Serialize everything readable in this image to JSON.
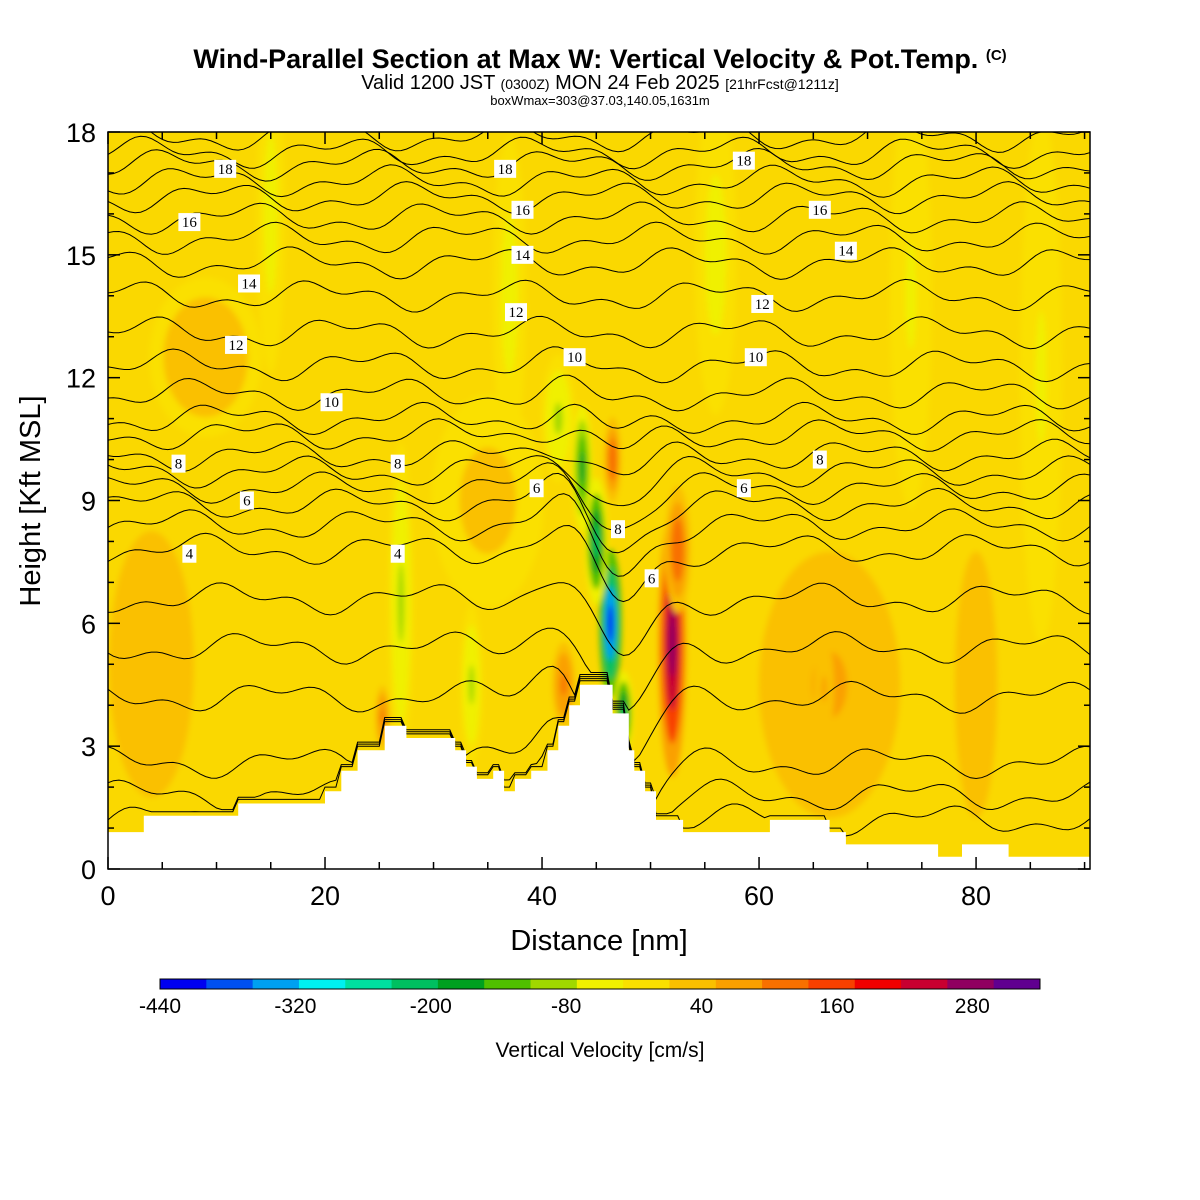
{
  "header": {
    "title_main": "Wind-Parallel Section at Max W: Vertical Velocity & Pot.Temp.",
    "title_mark": "(C)",
    "valid_prefix": "Valid 1200 JST",
    "valid_z": "(0300Z)",
    "valid_date": "MON 24 Feb 2025",
    "valid_fcst": "[21hrFcst@1211z]",
    "box_info": "boxWmax=303@37.03,140.05,1631m"
  },
  "chart_data": {
    "type": "heatmap",
    "xlabel": "Distance [nm]",
    "ylabel": "Height [Kft MSL]",
    "xlim": [
      0,
      90.5
    ],
    "ylim": [
      0,
      18
    ],
    "x_ticks": [
      0,
      20,
      40,
      60,
      80
    ],
    "y_ticks": [
      0,
      3,
      6,
      9,
      12,
      15,
      18
    ],
    "colorbar": {
      "label": "Vertical Velocity [cm/s]",
      "ticks": [
        "-440",
        "-320",
        "-200",
        "-80",
        "40",
        "160",
        "280"
      ],
      "range": [
        -440,
        340
      ],
      "colors": [
        "#0000f0",
        "#0050f0",
        "#00a0f0",
        "#00f0f0",
        "#00e0a0",
        "#00c060",
        "#00a020",
        "#50c000",
        "#a0d800",
        "#f0f000",
        "#fae000",
        "#fac000",
        "#faa000",
        "#f87000",
        "#f84000",
        "#f00000",
        "#c80030",
        "#900060",
        "#600090"
      ]
    },
    "terrain_profile": [
      [
        0,
        0.9
      ],
      [
        3.3,
        0.9
      ],
      [
        3.3,
        1.3
      ],
      [
        12,
        1.3
      ],
      [
        12,
        1.6
      ],
      [
        20,
        1.6
      ],
      [
        20,
        1.9
      ],
      [
        21.5,
        1.9
      ],
      [
        21.5,
        2.4
      ],
      [
        23,
        2.4
      ],
      [
        23,
        2.9
      ],
      [
        25.5,
        2.9
      ],
      [
        25.5,
        3.5
      ],
      [
        27.5,
        3.5
      ],
      [
        27.5,
        3.2
      ],
      [
        32,
        3.2
      ],
      [
        32,
        2.9
      ],
      [
        33,
        2.9
      ],
      [
        33,
        2.5
      ],
      [
        34,
        2.5
      ],
      [
        34,
        2.2
      ],
      [
        35.5,
        2.2
      ],
      [
        35.5,
        2.4
      ],
      [
        36.5,
        2.4
      ],
      [
        36.5,
        1.9
      ],
      [
        37.5,
        1.9
      ],
      [
        37.5,
        2.2
      ],
      [
        39,
        2.2
      ],
      [
        39,
        2.4
      ],
      [
        40.5,
        2.4
      ],
      [
        40.5,
        2.9
      ],
      [
        41.5,
        2.9
      ],
      [
        41.5,
        3.5
      ],
      [
        42.5,
        3.5
      ],
      [
        42.5,
        4.0
      ],
      [
        43.5,
        4.0
      ],
      [
        43.5,
        4.5
      ],
      [
        46.5,
        4.5
      ],
      [
        46.5,
        3.8
      ],
      [
        48,
        3.8
      ],
      [
        48,
        2.9
      ],
      [
        48.5,
        2.9
      ],
      [
        48.5,
        2.4
      ],
      [
        49.5,
        2.4
      ],
      [
        49.5,
        1.9
      ],
      [
        50.5,
        1.9
      ],
      [
        50.5,
        1.2
      ],
      [
        53,
        1.2
      ],
      [
        53,
        0.9
      ],
      [
        61,
        0.9
      ],
      [
        61,
        1.2
      ],
      [
        66.5,
        1.2
      ],
      [
        66.5,
        0.9
      ],
      [
        68,
        0.9
      ],
      [
        68,
        0.6
      ],
      [
        76.5,
        0.6
      ],
      [
        76.5,
        0.3
      ],
      [
        78.7,
        0.3
      ],
      [
        78.7,
        0.6
      ],
      [
        83,
        0.6
      ],
      [
        83,
        0.3
      ],
      [
        90.5,
        0.3
      ]
    ],
    "w_field": [
      {
        "x": 52.0,
        "y": 5.5,
        "sx": 1.0,
        "sy": 2.5,
        "w": 300
      },
      {
        "x": 52.5,
        "y": 7.8,
        "sx": 0.9,
        "sy": 1.2,
        "w": 140
      },
      {
        "x": 46.3,
        "y": 6.0,
        "sx": 0.8,
        "sy": 1.4,
        "w": -440
      },
      {
        "x": 45.0,
        "y": 8.0,
        "sx": 0.8,
        "sy": 1.2,
        "w": -220
      },
      {
        "x": 43.7,
        "y": 9.8,
        "sx": 0.7,
        "sy": 1.2,
        "w": -190
      },
      {
        "x": 47.5,
        "y": 3.8,
        "sx": 0.7,
        "sy": 0.8,
        "w": -220
      },
      {
        "x": 46.5,
        "y": 10.0,
        "sx": 0.6,
        "sy": 0.8,
        "w": 130
      },
      {
        "x": 27.0,
        "y": 6.5,
        "sx": 0.9,
        "sy": 3.0,
        "w": -90
      },
      {
        "x": 33.5,
        "y": 4.5,
        "sx": 0.8,
        "sy": 1.5,
        "w": -80
      },
      {
        "x": 41.5,
        "y": 11.0,
        "sx": 1.2,
        "sy": 1.2,
        "w": -90
      },
      {
        "x": 42.0,
        "y": 4.5,
        "sx": 0.8,
        "sy": 0.8,
        "w": 120
      },
      {
        "x": 25.3,
        "y": 3.7,
        "sx": 0.5,
        "sy": 0.6,
        "w": 110
      },
      {
        "x": 66.5,
        "y": 4.5,
        "sx": 5.0,
        "sy": 2.5,
        "w": 60
      },
      {
        "x": 66.0,
        "y": 4.4,
        "sx": 0.7,
        "sy": 1.0,
        "w": 60
      },
      {
        "x": 80.0,
        "y": 4.5,
        "sx": 1.5,
        "sy": 2.5,
        "w": 50
      },
      {
        "x": 4.0,
        "y": 5.0,
        "sx": 3.0,
        "sy": 2.5,
        "w": 40
      },
      {
        "x": 15.0,
        "y": 16.0,
        "sx": 1.0,
        "sy": 3.0,
        "w": -50
      },
      {
        "x": 37.0,
        "y": 14.0,
        "sx": 1.2,
        "sy": 3.0,
        "w": -50
      },
      {
        "x": 56.0,
        "y": 15.0,
        "sx": 1.5,
        "sy": 3.0,
        "w": -50
      },
      {
        "x": 74.0,
        "y": 14.0,
        "sx": 1.5,
        "sy": 4.0,
        "w": -40
      },
      {
        "x": 86.0,
        "y": 12.0,
        "sx": 1.5,
        "sy": 5.0,
        "w": -40
      },
      {
        "x": 9.0,
        "y": 12.5,
        "sx": 4.0,
        "sy": 1.5,
        "w": 30
      },
      {
        "x": 35.0,
        "y": 9.0,
        "sx": 4.0,
        "sy": 2.0,
        "w": 20
      }
    ],
    "theta_labels": [
      {
        "text": "18",
        "x": 10.8,
        "y": 17.1
      },
      {
        "text": "18",
        "x": 36.6,
        "y": 17.1
      },
      {
        "text": "18",
        "x": 58.6,
        "y": 17.3
      },
      {
        "text": "16",
        "x": 7.5,
        "y": 15.8
      },
      {
        "text": "16",
        "x": 38.2,
        "y": 16.1
      },
      {
        "text": "16",
        "x": 65.6,
        "y": 16.1
      },
      {
        "text": "14",
        "x": 13.0,
        "y": 14.3
      },
      {
        "text": "14",
        "x": 38.2,
        "y": 15.0
      },
      {
        "text": "14",
        "x": 68.0,
        "y": 15.1
      },
      {
        "text": "12",
        "x": 11.8,
        "y": 12.8
      },
      {
        "text": "12",
        "x": 37.6,
        "y": 13.6
      },
      {
        "text": "12",
        "x": 60.3,
        "y": 13.8
      },
      {
        "text": "10",
        "x": 20.6,
        "y": 11.4
      },
      {
        "text": "10",
        "x": 43.0,
        "y": 12.5
      },
      {
        "text": "10",
        "x": 59.7,
        "y": 12.5
      },
      {
        "text": "8",
        "x": 6.5,
        "y": 9.9
      },
      {
        "text": "8",
        "x": 26.7,
        "y": 9.9
      },
      {
        "text": "8",
        "x": 47.0,
        "y": 8.3
      },
      {
        "text": "8",
        "x": 65.6,
        "y": 10.0
      },
      {
        "text": "6",
        "x": 12.8,
        "y": 9.0
      },
      {
        "text": "6",
        "x": 39.5,
        "y": 9.3
      },
      {
        "text": "6",
        "x": 50.1,
        "y": 7.1
      },
      {
        "text": "6",
        "x": 58.6,
        "y": 9.3
      },
      {
        "text": "4",
        "x": 7.5,
        "y": 7.7
      },
      {
        "text": "4",
        "x": 26.7,
        "y": 7.7
      }
    ],
    "theta_levels": [
      [
        0,
        1.2
      ],
      [
        0,
        1.8
      ],
      [
        0,
        2.6
      ],
      [
        0,
        4.2
      ],
      [
        0,
        5.4
      ],
      [
        0,
        6.6
      ],
      [
        0,
        7.8
      ],
      [
        0,
        8.4
      ],
      [
        0,
        8.9
      ],
      [
        0,
        9.3
      ],
      [
        0,
        9.7
      ],
      [
        0,
        10.1
      ],
      [
        0,
        10.6
      ],
      [
        0,
        11.0
      ],
      [
        0,
        11.6
      ],
      [
        0,
        12.3
      ],
      [
        0,
        13.1
      ],
      [
        0,
        14.0
      ],
      [
        0,
        14.8
      ],
      [
        0,
        15.4
      ],
      [
        0,
        15.9
      ],
      [
        0,
        16.4
      ],
      [
        0,
        16.8
      ],
      [
        0,
        17.2
      ],
      [
        0,
        17.5
      ],
      [
        0,
        17.9
      ]
    ]
  },
  "style": {
    "background_color": "#fad800",
    "terrain_color": "#ffffff",
    "contour_color": "#000000"
  }
}
